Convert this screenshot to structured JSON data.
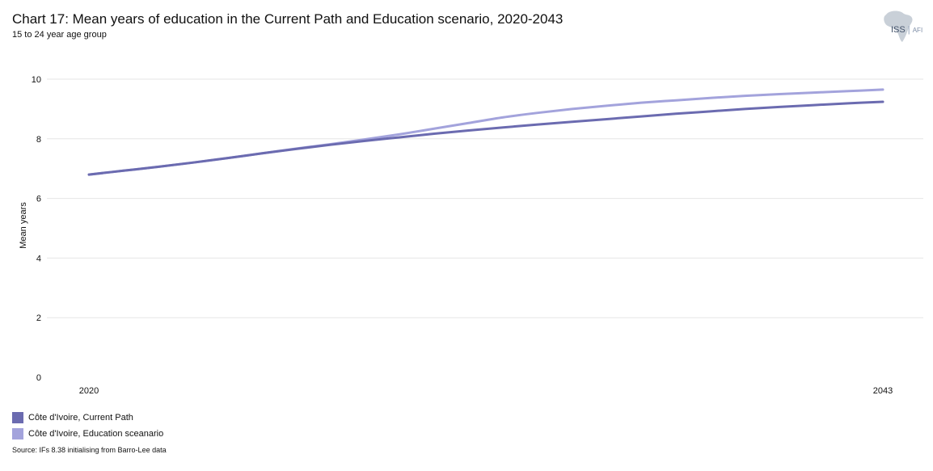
{
  "header": {
    "title": "Chart 17: Mean years of education in the Current Path and Education scenario, 2020-2043",
    "subtitle": "15 to 24 year age group"
  },
  "logo": {
    "main": "ISS",
    "sub": "AFI",
    "icon": "africa-map-icon"
  },
  "footer": {
    "source": "Source: IFs 8.38 initialising from Barro-Lee data"
  },
  "colors": {
    "current_path": "#6b6bb0",
    "education": "#a3a3dc",
    "grid": "#e6e6e6"
  },
  "chart_data": {
    "type": "line",
    "title": "Chart 17: Mean years of education in the Current Path and Education scenario, 2020-2043",
    "subtitle": "15 to 24 year age group",
    "xlabel": "",
    "ylabel": "Mean years",
    "x": [
      2020,
      2021,
      2022,
      2023,
      2024,
      2025,
      2026,
      2027,
      2028,
      2029,
      2030,
      2031,
      2032,
      2033,
      2034,
      2035,
      2036,
      2037,
      2038,
      2039,
      2040,
      2041,
      2042,
      2043
    ],
    "xticks": [
      2020,
      2043
    ],
    "yticks": [
      0,
      2,
      4,
      6,
      8,
      10
    ],
    "ylim": [
      0,
      10
    ],
    "grid": true,
    "legend_position": "bottom-left",
    "series": [
      {
        "name": "Côte d'Ivoire, Current Path",
        "color": "#6b6bb0",
        "values": [
          6.8,
          6.93,
          7.06,
          7.2,
          7.35,
          7.51,
          7.66,
          7.8,
          7.93,
          8.05,
          8.17,
          8.28,
          8.38,
          8.48,
          8.57,
          8.66,
          8.75,
          8.84,
          8.92,
          9.0,
          9.07,
          9.13,
          9.19,
          9.24
        ]
      },
      {
        "name": "Côte d'Ivoire, Education sceanario",
        "color": "#a3a3dc",
        "values": [
          6.8,
          6.93,
          7.06,
          7.2,
          7.35,
          7.51,
          7.67,
          7.82,
          7.98,
          8.15,
          8.34,
          8.53,
          8.72,
          8.87,
          9.0,
          9.11,
          9.21,
          9.29,
          9.37,
          9.44,
          9.5,
          9.55,
          9.6,
          9.65
        ]
      }
    ]
  }
}
